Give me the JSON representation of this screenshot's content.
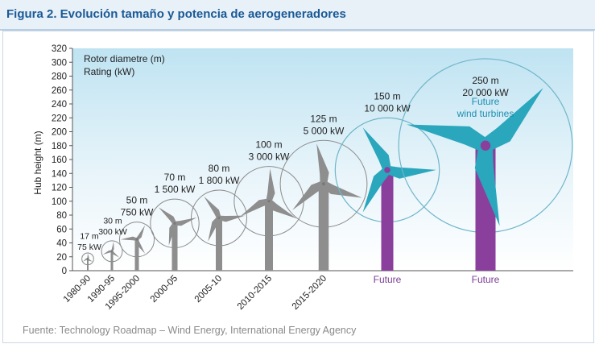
{
  "header": {
    "title": "Figura 2. Evolución tamaño y potencia de aerogeneradores"
  },
  "footer": {
    "source": "Fuente: Technology Roadmap – Wind Energy, International Energy Agency"
  },
  "colors": {
    "grey_turbine": "#8e8e8e",
    "future_blade": "#2aa6bd",
    "future_tower": "#8a3f9c",
    "sky_top": "#bfe3f2",
    "future_label": "#7a3c96"
  },
  "chart_data": {
    "type": "scatter",
    "title": "Figura 2. Evolución tamaño y potencia de aerogeneradores",
    "ylabel": "Hub height (m)",
    "ylim": [
      0,
      320
    ],
    "y_ticks": [
      0,
      20,
      40,
      60,
      80,
      100,
      120,
      140,
      160,
      180,
      200,
      220,
      240,
      260,
      280,
      300,
      320
    ],
    "legend": [
      "Rotor diametre (m)",
      "Rating (kW)"
    ],
    "legend_position": "top-left",
    "annotations": [
      {
        "text": "Future",
        "sub": "wind turbines"
      }
    ],
    "series": [
      {
        "name": "1980-90",
        "period": "1980-90",
        "diameter": "17 m",
        "rating": "75 kW",
        "d": 17,
        "hub": 17,
        "future": false
      },
      {
        "name": "1990-95",
        "period": "1990-95",
        "diameter": "30 m",
        "rating": "300 kW",
        "d": 30,
        "hub": 28,
        "future": false
      },
      {
        "name": "1995-2000",
        "period": "1995-2000",
        "diameter": "50 m",
        "rating": "750 kW",
        "d": 50,
        "hub": 45,
        "future": false
      },
      {
        "name": "2000-05",
        "period": "2000-05",
        "diameter": "70 m",
        "rating": "1 500 kW",
        "d": 70,
        "hub": 68,
        "future": false
      },
      {
        "name": "2005-10",
        "period": "2005-10",
        "diameter": "80 m",
        "rating": "1 800 kW",
        "d": 80,
        "hub": 76,
        "future": false
      },
      {
        "name": "2010-2015",
        "period": "2010-2015",
        "diameter": "100 m",
        "rating": "3 000 kW",
        "d": 100,
        "hub": 100,
        "future": false
      },
      {
        "name": "2015-2020",
        "period": "2015-2020",
        "diameter": "125 m",
        "rating": "5 000 kW",
        "d": 125,
        "hub": 125,
        "future": false
      },
      {
        "name": "Future",
        "period": "Future",
        "diameter": "150 m",
        "rating": "10 000 kW",
        "d": 150,
        "hub": 145,
        "future": true
      },
      {
        "name": "Future",
        "period": "Future",
        "diameter": "250 m",
        "rating": "20 000 kW",
        "d": 250,
        "hub": 180,
        "future": true
      }
    ]
  }
}
